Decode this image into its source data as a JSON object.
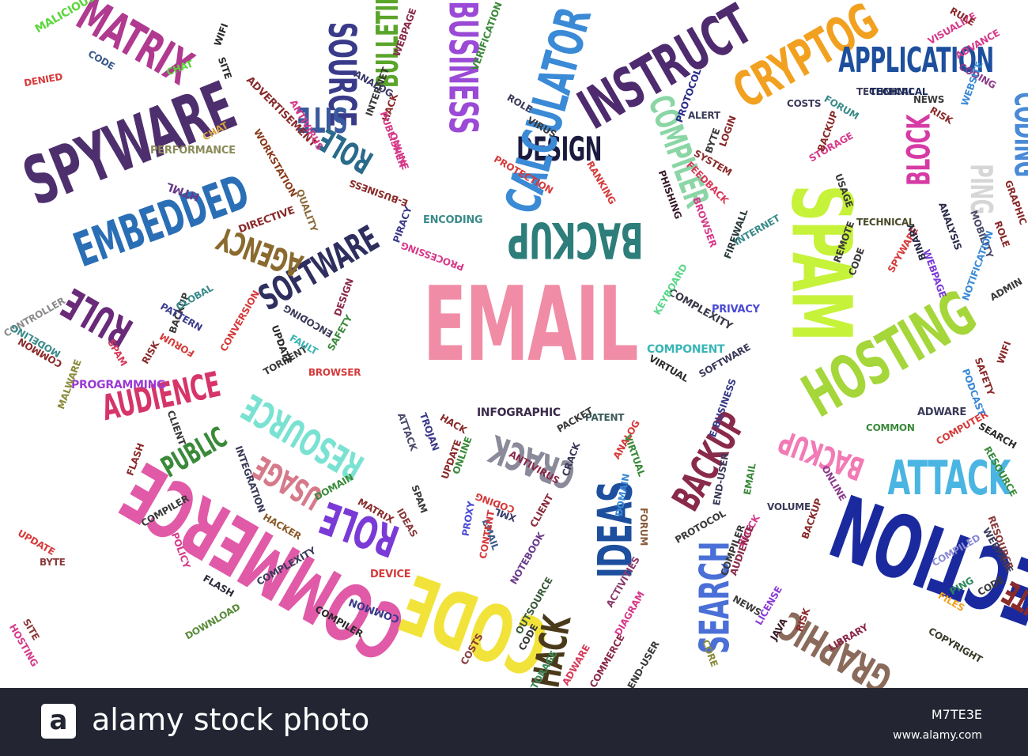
{
  "cloud": {
    "words": [
      {
        "text": "EMAIL",
        "color": "#f08ca5"
      },
      {
        "text": "SPAM",
        "color": "#c6f23a"
      },
      {
        "text": "HOSTING",
        "color": "#a5d63a"
      },
      {
        "text": "SPYWARE",
        "color": "#4e2f6e"
      },
      {
        "text": "EMBEDDED",
        "color": "#2a6fb5"
      },
      {
        "text": "MATRIX",
        "color": "#b03a8f"
      },
      {
        "text": "BACKUP",
        "color": "#2d7d7a"
      },
      {
        "text": "DESIGN",
        "color": "#1b1b40"
      },
      {
        "text": "INSTRUCT",
        "color": "#4e2a6e"
      },
      {
        "text": "CRYPTOG",
        "color": "#f2a01f"
      },
      {
        "text": "APPLICATION",
        "color": "#1d4f9e"
      },
      {
        "text": "SOFTWARE",
        "color": "#2f2f5f"
      },
      {
        "text": "AGENCY",
        "color": "#8a6a2e"
      },
      {
        "text": "RULE",
        "color": "#6a2a7a"
      },
      {
        "text": "AUDIENCE",
        "color": "#d6356a"
      },
      {
        "text": "RESOURCE",
        "color": "#7ae2d2"
      },
      {
        "text": "COMMERCE",
        "color": "#e05aa8"
      },
      {
        "text": "CODE",
        "color": "#f2e33a"
      },
      {
        "text": "IDEAS",
        "color": "#1d4f9e"
      },
      {
        "text": "SEARCH",
        "color": "#4a6fd6"
      },
      {
        "text": "BACKUP",
        "color": "#8a2a4a"
      },
      {
        "text": "ATTACK",
        "color": "#4ab5e2"
      },
      {
        "text": "SECTION",
        "color": "#1a2a9e"
      },
      {
        "text": "CRACK",
        "color": "#8a8a9a"
      },
      {
        "text": "ROLE",
        "color": "#7a3ad6"
      },
      {
        "text": "USAGE",
        "color": "#d67a8a"
      },
      {
        "text": "PUBLIC",
        "color": "#3a8a3a"
      },
      {
        "text": "BLOCK",
        "color": "#d63aa5"
      },
      {
        "text": "PING",
        "color": "#d6d6d6"
      },
      {
        "text": "CODING",
        "color": "#4a8ad6"
      },
      {
        "text": "BUSINESS",
        "color": "#9a4ad6"
      },
      {
        "text": "CALCULATOR",
        "color": "#3a8ad6"
      },
      {
        "text": "SOURCE",
        "color": "#3a3a8a"
      },
      {
        "text": "BULLETIN",
        "color": "#5aa52a"
      },
      {
        "text": "SITE",
        "color": "#3a5a9e"
      },
      {
        "text": "ROLE",
        "color": "#2a6a8a"
      },
      {
        "text": "COMPILER",
        "color": "#8ad6a5"
      },
      {
        "text": "GRAPHIC",
        "color": "#8a6a5a"
      },
      {
        "text": "HACK",
        "color": "#4a3a1a"
      },
      {
        "text": "BACKUP",
        "color": "#f27ab5"
      },
      {
        "text": "PROGRAMMING",
        "color": "#9a3ad6"
      },
      {
        "text": "INFOGRAPHIC",
        "color": "#3a2a4a"
      },
      {
        "text": "HTML",
        "color": "#6a3a8a"
      },
      {
        "text": "PERFORMANCE",
        "color": "#8a8a5a"
      },
      {
        "text": "ADVERTISEMENT",
        "color": "#8a2a2a"
      },
      {
        "text": "WORKSTATION",
        "color": "#8a3a1a"
      },
      {
        "text": "DIRECTIVE",
        "color": "#8a2a2a"
      },
      {
        "text": "QUALITY",
        "color": "#8a6a3a"
      },
      {
        "text": "ENCODING",
        "color": "#3a8a8a"
      },
      {
        "text": "PROTECTION",
        "color": "#d63a3a"
      },
      {
        "text": "PHISHING",
        "color": "#3a1a2a"
      },
      {
        "text": "FEEDBACK",
        "color": "#d63a5a"
      },
      {
        "text": "BROWSER",
        "color": "#d63a8a"
      },
      {
        "text": "FIREWALL",
        "color": "#2a3a3a"
      },
      {
        "text": "COMPONENT",
        "color": "#3ab5b5"
      },
      {
        "text": "COMPLEXITY",
        "color": "#3a3a4a"
      },
      {
        "text": "PRIVACY",
        "color": "#4a4ad6"
      },
      {
        "text": "KEYBOARD",
        "color": "#5ad68a"
      },
      {
        "text": "SOFTWARE",
        "color": "#3a3a5a"
      },
      {
        "text": "VIRTUAL",
        "color": "#2a2a2a"
      },
      {
        "text": "TECHNICAL",
        "color": "#3a3a5a"
      },
      {
        "text": "TECHNICAL",
        "color": "#4a4a2a"
      },
      {
        "text": "ANALYSIS",
        "color": "#2a2a4a"
      },
      {
        "text": "MOBILITY",
        "color": "#4a4a6a"
      },
      {
        "text": "SPYWARE",
        "color": "#d63a3a"
      },
      {
        "text": "WEBPAGE",
        "color": "#7a3ad6"
      },
      {
        "text": "BINARY",
        "color": "#2a2a4a"
      },
      {
        "text": "ADWARE",
        "color": "#3a3a5a"
      },
      {
        "text": "COMPUTER",
        "color": "#d63a3a"
      },
      {
        "text": "PODCAST",
        "color": "#3a8ad6"
      },
      {
        "text": "SAFETY",
        "color": "#8a2a2a"
      },
      {
        "text": "SEARCH",
        "color": "#2a2a2a"
      },
      {
        "text": "COMMON",
        "color": "#3a8a3a"
      },
      {
        "text": "VOLUME",
        "color": "#3a3a5a"
      },
      {
        "text": "ONLINE",
        "color": "#8a3a8a"
      },
      {
        "text": "END-USER",
        "color": "#3a3a5a"
      },
      {
        "text": "PROTOCOL",
        "color": "#3a3a3a"
      },
      {
        "text": "FORUM",
        "color": "#8a5a3a"
      },
      {
        "text": "DIAGRAM",
        "color": "#d63a8a"
      },
      {
        "text": "ACTIVITIES",
        "color": "#8a3a6a"
      },
      {
        "text": "LIBRARY",
        "color": "#8a2a4a"
      },
      {
        "text": "COPYRIGHT",
        "color": "#3a3a2a"
      },
      {
        "text": "FILES",
        "color": "#f2a01f"
      },
      {
        "text": "COMPILED",
        "color": "#8a8ad6"
      },
      {
        "text": "RESOURCE",
        "color": "#8a3a3a"
      },
      {
        "text": "PING",
        "color": "#2a8a5a"
      },
      {
        "text": "LICENSE",
        "color": "#8a3ad6"
      },
      {
        "text": "JAVA",
        "color": "#3a1a2a"
      },
      {
        "text": "RISK",
        "color": "#8a2a2a"
      },
      {
        "text": "COMMERCE",
        "color": "#8a2a4a"
      },
      {
        "text": "ADWARE",
        "color": "#d63a5a"
      },
      {
        "text": "NOTEBOOK",
        "color": "#6a3a8a"
      },
      {
        "text": "CLIENT",
        "color": "#8a2a3a"
      },
      {
        "text": "EMAIL",
        "color": "#3a5a8a"
      },
      {
        "text": "XML",
        "color": "#3a3a6a"
      },
      {
        "text": "CODING",
        "color": "#d63a3a"
      },
      {
        "text": "PROXY",
        "color": "#4a4ad6"
      },
      {
        "text": "DEVICE",
        "color": "#d63a3a"
      },
      {
        "text": "COMMON",
        "color": "#3a3a8a"
      },
      {
        "text": "COMPILER",
        "color": "#2a2a2a"
      },
      {
        "text": "DOWNLOAD",
        "color": "#5a8a3a"
      },
      {
        "text": "FLASH",
        "color": "#2a2a3a"
      },
      {
        "text": "COMPLEXITY",
        "color": "#3a3a5a"
      },
      {
        "text": "HACKER",
        "color": "#8a5a2a"
      },
      {
        "text": "POLICY",
        "color": "#d63a8a"
      },
      {
        "text": "UPDATE",
        "color": "#d63a3a"
      },
      {
        "text": "BYTE",
        "color": "#8a3a3a"
      },
      {
        "text": "COMPILER",
        "color": "#3a3a3a"
      },
      {
        "text": "INTEGRATION",
        "color": "#3a3a5a"
      },
      {
        "text": "MATRIX",
        "color": "#8a2a2a"
      },
      {
        "text": "DOMAIN",
        "color": "#3a8a3a"
      },
      {
        "text": "IDEAS",
        "color": "#8a3a3a"
      },
      {
        "text": "ANTIVIRUS",
        "color": "#8a2a4a"
      },
      {
        "text": "UPDATE",
        "color": "#8a2a2a"
      },
      {
        "text": "ATTACK",
        "color": "#4a4a6a"
      },
      {
        "text": "TROJAN",
        "color": "#3a3a8a"
      },
      {
        "text": "HACK",
        "color": "#8a2a2a"
      },
      {
        "text": "SPAM",
        "color": "#3a3a3a"
      },
      {
        "text": "PATENT",
        "color": "#3a5a5a"
      },
      {
        "text": "ANALOG",
        "color": "#d63a3a"
      },
      {
        "text": "PACKET",
        "color": "#3a3a3a"
      },
      {
        "text": "E-BUSINESS",
        "color": "#3a3a8a"
      },
      {
        "text": "BROWSER",
        "color": "#d63a3a"
      },
      {
        "text": "TORRENT",
        "color": "#3a3a3a"
      },
      {
        "text": "UPDATE",
        "color": "#2a2a2a"
      },
      {
        "text": "FAULT",
        "color": "#3ab5b5"
      },
      {
        "text": "SAFETY",
        "color": "#3a8a3a"
      },
      {
        "text": "ENCODING",
        "color": "#3a3a5a"
      },
      {
        "text": "DESIGN",
        "color": "#8a2a4a"
      },
      {
        "text": "BACKUP",
        "color": "#3a3a3a"
      },
      {
        "text": "CONVERSION",
        "color": "#d63a3a"
      },
      {
        "text": "GLOBAL",
        "color": "#3a8a8a"
      },
      {
        "text": "PATTERN",
        "color": "#3a3a8a"
      },
      {
        "text": "FORUM",
        "color": "#d63a3a"
      },
      {
        "text": "RISK",
        "color": "#8a2a2a"
      },
      {
        "text": "SPAM",
        "color": "#d63a5a"
      },
      {
        "text": "CONTROLLER",
        "color": "#8a8a8a"
      },
      {
        "text": "MODELING",
        "color": "#3a8a8a"
      },
      {
        "text": "COMMON",
        "color": "#8a2a2a"
      },
      {
        "text": "MALWARE",
        "color": "#8a8a3a"
      },
      {
        "text": "FLASH",
        "color": "#8a2a2a"
      },
      {
        "text": "CLIENT",
        "color": "#3a3a3a"
      },
      {
        "text": "SITE",
        "color": "#8a3a3a"
      },
      {
        "text": "HOSTING",
        "color": "#d63a8a"
      },
      {
        "text": "DENIED",
        "color": "#d63a3a"
      },
      {
        "text": "MALICIOUS",
        "color": "#5ad63a"
      },
      {
        "text": "CODE",
        "color": "#3a5a8a"
      },
      {
        "text": "CHAT",
        "color": "#5ad63a"
      },
      {
        "text": "WIFI",
        "color": "#2a2a2a"
      },
      {
        "text": "SITE",
        "color": "#2a2a2a"
      },
      {
        "text": "CHAT",
        "color": "#d6a53a"
      },
      {
        "text": "ANTIVIRUS",
        "color": "#d63a8a"
      },
      {
        "text": "INTERNET",
        "color": "#3a3a3a"
      },
      {
        "text": "HACK",
        "color": "#8a2a2a"
      },
      {
        "text": "ANALOG",
        "color": "#3a3a6a"
      },
      {
        "text": "WEBPAGE",
        "color": "#8a2a4a"
      },
      {
        "text": "VERIFICATION",
        "color": "#3a8a3a"
      },
      {
        "text": "ROLE",
        "color": "#3a3a5a"
      },
      {
        "text": "VIRUS",
        "color": "#3a3a3a"
      },
      {
        "text": "ONLINE",
        "color": "#d63a8a"
      },
      {
        "text": "PUBLISHER",
        "color": "#d63a8a"
      },
      {
        "text": "E-BUSINESS",
        "color": "#8a2a2a"
      },
      {
        "text": "PIRACY",
        "color": "#3a3a8a"
      },
      {
        "text": "PROCESSING",
        "color": "#d63a8a"
      },
      {
        "text": "RANKING",
        "color": "#d63a3a"
      },
      {
        "text": "PROTOCOL",
        "color": "#2a2a8a"
      },
      {
        "text": "ALERT",
        "color": "#3a3a5a"
      },
      {
        "text": "BYTE",
        "color": "#3a3a3a"
      },
      {
        "text": "LOGIN",
        "color": "#8a2a2a"
      },
      {
        "text": "SYSTEM",
        "color": "#8a2a2a"
      },
      {
        "text": "STORAGE",
        "color": "#d63a8a"
      },
      {
        "text": "COSTS",
        "color": "#3a3a5a"
      },
      {
        "text": "BACKUP",
        "color": "#8a2a2a"
      },
      {
        "text": "NEWS",
        "color": "#3a3a3a"
      },
      {
        "text": "RISK",
        "color": "#8a2a2a"
      },
      {
        "text": "CODING",
        "color": "#8a3a8a"
      },
      {
        "text": "FORUM",
        "color": "#3a8a8a"
      },
      {
        "text": "WEBSITE",
        "color": "#3a8ad6"
      },
      {
        "text": "TECHNICAL",
        "color": "#1a2a5a"
      },
      {
        "text": "VISUALIZE",
        "color": "#d63a8a"
      },
      {
        "text": "RULE",
        "color": "#8a2a2a"
      },
      {
        "text": "ADVANCE",
        "color": "#d63a8a"
      },
      {
        "text": "REMOTE",
        "color": "#3a3a3a"
      },
      {
        "text": "USAGE",
        "color": "#3a3a3a"
      },
      {
        "text": "INTERNET",
        "color": "#3a8a8a"
      },
      {
        "text": "ADMIN",
        "color": "#3a3a3a"
      },
      {
        "text": "ROLE",
        "color": "#8a2a2a"
      },
      {
        "text": "CODE",
        "color": "#3a3a3a"
      },
      {
        "text": "NOTIFICATION",
        "color": "#3a8ad6"
      },
      {
        "text": "GRAPHIC",
        "color": "#8a2a2a"
      },
      {
        "text": "SITE",
        "color": "#8a2a2a"
      },
      {
        "text": "WIFI",
        "color": "#8a2a2a"
      },
      {
        "text": "EMAIL",
        "color": "#3a8a3a"
      },
      {
        "text": "BACKUP",
        "color": "#8a2a2a"
      },
      {
        "text": "BLOCK",
        "color": "#d63a8a"
      },
      {
        "text": "COMPILER",
        "color": "#3a3a3a"
      },
      {
        "text": "NEWS",
        "color": "#3a3a3a"
      },
      {
        "text": "AUDIENCE",
        "color": "#8a2a4a"
      },
      {
        "text": "CORE",
        "color": "#8a8a3a"
      },
      {
        "text": "STORAGE",
        "color": "#3a8a5a"
      },
      {
        "text": "END-USER",
        "color": "#3a3a3a"
      },
      {
        "text": "CODE",
        "color": "#3a3a3a"
      },
      {
        "text": "OUTSOURCE",
        "color": "#3a5a3a"
      },
      {
        "text": "COSTS",
        "color": "#8a3a3a"
      },
      {
        "text": "CONTENT",
        "color": "#d63a3a"
      },
      {
        "text": "DOMAIN",
        "color": "#3a8ad6"
      },
      {
        "text": "VIRTUAL",
        "color": "#3a8a3a"
      },
      {
        "text": "CRACK",
        "color": "#3a3a5a"
      },
      {
        "text": "ONLINE",
        "color": "#3a8a3a"
      },
      {
        "text": "RESOURCE",
        "color": "#3a8a3a"
      },
      {
        "text": "WEBPAGE",
        "color": "#3a3a5a"
      },
      {
        "text": "CODE",
        "color": "#3a3a3a"
      }
    ]
  },
  "stock": {
    "logo_glyph": "a",
    "brand": "alamy stock photo",
    "image_id": "M7TE3E",
    "url": "www.alamy.com",
    "bar_color": "#232632"
  }
}
